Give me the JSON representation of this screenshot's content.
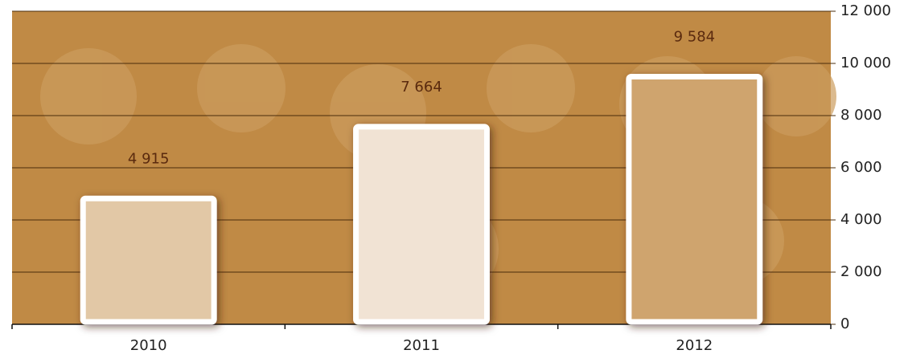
{
  "chart_data": {
    "type": "bar",
    "categories": [
      "2010",
      "2011",
      "2012"
    ],
    "values": [
      4915,
      7664,
      9584
    ],
    "value_labels": [
      "4 915",
      "7 664",
      "9 584"
    ],
    "colors": [
      "#e2c8a6",
      "#f1e3d4",
      "#cfa46e"
    ],
    "ylim": [
      0,
      12000
    ],
    "yticks": [
      0,
      {
        "value": 2000,
        "label": "2 000"
      },
      {
        "value": 4000,
        "label": "4 000"
      },
      {
        "value": 6000,
        "label": "6 000"
      },
      {
        "value": 8000,
        "label": "8 000"
      },
      {
        "value": 10000,
        "label": "10 000"
      },
      {
        "value": 12000,
        "label": "12 000"
      }
    ],
    "grid": true
  }
}
